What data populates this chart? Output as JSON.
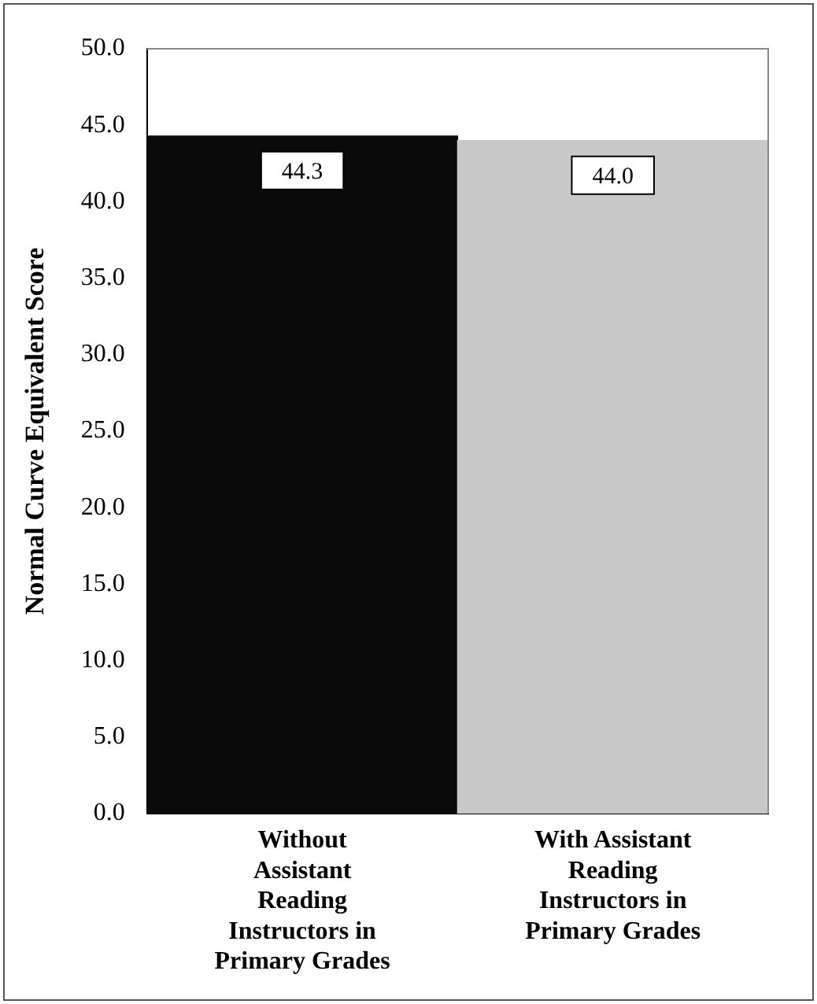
{
  "chart_data": {
    "type": "bar",
    "ylabel": "Normal Curve Equivalent Score",
    "categories": [
      "Without Assistant Reading Instructors in Primary Grades",
      "With Assistant Reading Instructors in Primary Grades"
    ],
    "values": [
      44.3,
      44.0
    ],
    "colors": [
      "#0a0a0a",
      "#c8c8c8"
    ],
    "ylim": [
      0,
      50
    ],
    "yticks": [
      {
        "value": 0,
        "label": "0.0"
      },
      {
        "value": 5,
        "label": "5.0"
      },
      {
        "value": 10,
        "label": "10.0"
      },
      {
        "value": 15,
        "label": "15.0"
      },
      {
        "value": 20,
        "label": "20.0"
      },
      {
        "value": 25,
        "label": "25.0"
      },
      {
        "value": 30,
        "label": "30.0"
      },
      {
        "value": 35,
        "label": "35.0"
      },
      {
        "value": 40,
        "label": "40.0"
      },
      {
        "value": 45,
        "label": "45.0"
      },
      {
        "value": 50,
        "label": "50.0"
      }
    ],
    "value_labels": [
      "44.3",
      "44.0"
    ],
    "grid": false,
    "legend": false
  }
}
